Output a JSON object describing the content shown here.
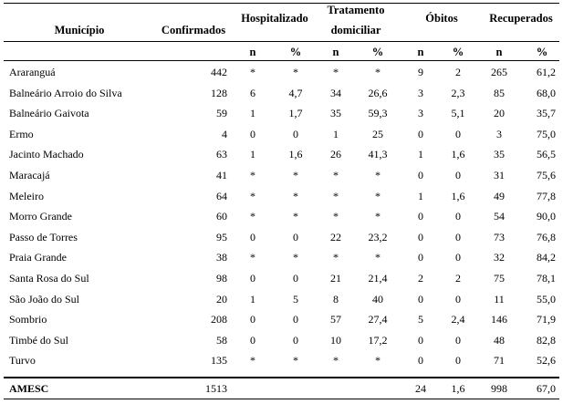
{
  "header": {
    "municipio": "Município",
    "confirmados": "Confirmados",
    "hospitalizado": "Hospitalizado",
    "tratamento_line1": "Tratamento",
    "tratamento_line2": "domiciliar",
    "obitos": "Óbitos",
    "recuperados": "Recuperados",
    "sub_n": "n",
    "sub_pct": "%"
  },
  "rows": [
    {
      "municipio": "Araranguá",
      "confirmados": "442",
      "hosp_n": "*",
      "hosp_pct": "*",
      "trat_n": "*",
      "trat_pct": "*",
      "obitos_n": "9",
      "obitos_pct": "2",
      "rec_n": "265",
      "rec_pct": "61,2"
    },
    {
      "municipio": "Balneário Arroio do Silva",
      "confirmados": "128",
      "hosp_n": "6",
      "hosp_pct": "4,7",
      "trat_n": "34",
      "trat_pct": "26,6",
      "obitos_n": "3",
      "obitos_pct": "2,3",
      "rec_n": "85",
      "rec_pct": "68,0"
    },
    {
      "municipio": "Balneário Gaivota",
      "confirmados": "59",
      "hosp_n": "1",
      "hosp_pct": "1,7",
      "trat_n": "35",
      "trat_pct": "59,3",
      "obitos_n": "3",
      "obitos_pct": "5,1",
      "rec_n": "20",
      "rec_pct": "35,7"
    },
    {
      "municipio": "Ermo",
      "confirmados": "4",
      "hosp_n": "0",
      "hosp_pct": "0",
      "trat_n": "1",
      "trat_pct": "25",
      "obitos_n": "0",
      "obitos_pct": "0",
      "rec_n": "3",
      "rec_pct": "75,0"
    },
    {
      "municipio": "Jacinto Machado",
      "confirmados": "63",
      "hosp_n": "1",
      "hosp_pct": "1,6",
      "trat_n": "26",
      "trat_pct": "41,3",
      "obitos_n": "1",
      "obitos_pct": "1,6",
      "rec_n": "35",
      "rec_pct": "56,5"
    },
    {
      "municipio": "Maracajá",
      "confirmados": "41",
      "hosp_n": "*",
      "hosp_pct": "*",
      "trat_n": "*",
      "trat_pct": "*",
      "obitos_n": "0",
      "obitos_pct": "0",
      "rec_n": "31",
      "rec_pct": "75,6"
    },
    {
      "municipio": "Meleiro",
      "confirmados": "64",
      "hosp_n": "*",
      "hosp_pct": "*",
      "trat_n": "*",
      "trat_pct": "*",
      "obitos_n": "1",
      "obitos_pct": "1,6",
      "rec_n": "49",
      "rec_pct": "77,8"
    },
    {
      "municipio": "Morro Grande",
      "confirmados": "60",
      "hosp_n": "*",
      "hosp_pct": "*",
      "trat_n": "*",
      "trat_pct": "*",
      "obitos_n": "0",
      "obitos_pct": "0",
      "rec_n": "54",
      "rec_pct": "90,0"
    },
    {
      "municipio": "Passo de Torres",
      "confirmados": "95",
      "hosp_n": "0",
      "hosp_pct": "0",
      "trat_n": "22",
      "trat_pct": "23,2",
      "obitos_n": "0",
      "obitos_pct": "0",
      "rec_n": "73",
      "rec_pct": "76,8"
    },
    {
      "municipio": "Praia Grande",
      "confirmados": "38",
      "hosp_n": "*",
      "hosp_pct": "*",
      "trat_n": "*",
      "trat_pct": "*",
      "obitos_n": "0",
      "obitos_pct": "0",
      "rec_n": "32",
      "rec_pct": "84,2"
    },
    {
      "municipio": "Santa Rosa do Sul",
      "confirmados": "98",
      "hosp_n": "0",
      "hosp_pct": "0",
      "trat_n": "21",
      "trat_pct": "21,4",
      "obitos_n": "2",
      "obitos_pct": "2",
      "rec_n": "75",
      "rec_pct": "78,1"
    },
    {
      "municipio": "São João do Sul",
      "confirmados": "20",
      "hosp_n": "1",
      "hosp_pct": "5",
      "trat_n": "8",
      "trat_pct": "40",
      "obitos_n": "0",
      "obitos_pct": "0",
      "rec_n": "11",
      "rec_pct": "55,0"
    },
    {
      "municipio": "Sombrio",
      "confirmados": "208",
      "hosp_n": "0",
      "hosp_pct": "0",
      "trat_n": "57",
      "trat_pct": "27,4",
      "obitos_n": "5",
      "obitos_pct": "2,4",
      "rec_n": "146",
      "rec_pct": "71,9"
    },
    {
      "municipio": "Timbé do Sul",
      "confirmados": "58",
      "hosp_n": "0",
      "hosp_pct": "0",
      "trat_n": "10",
      "trat_pct": "17,2",
      "obitos_n": "0",
      "obitos_pct": "0",
      "rec_n": "48",
      "rec_pct": "82,8"
    },
    {
      "municipio": "Turvo",
      "confirmados": "135",
      "hosp_n": "*",
      "hosp_pct": "*",
      "trat_n": "*",
      "trat_pct": "*",
      "obitos_n": "0",
      "obitos_pct": "0",
      "rec_n": "71",
      "rec_pct": "52,6"
    }
  ],
  "total": {
    "municipio": "AMESC",
    "confirmados": "1513",
    "hosp_n": "",
    "hosp_pct": "",
    "trat_n": "",
    "trat_pct": "",
    "obitos_n": "24",
    "obitos_pct": "1,6",
    "rec_n": "998",
    "rec_pct": "67,0"
  }
}
